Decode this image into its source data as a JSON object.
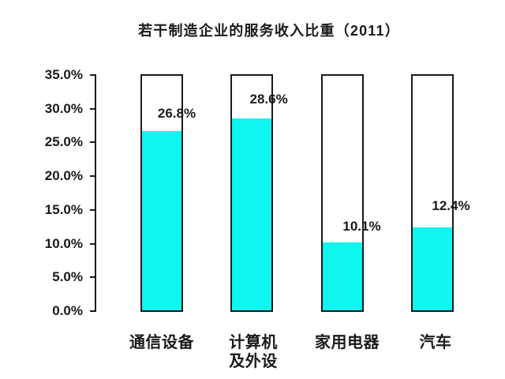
{
  "chart_data": {
    "type": "bar",
    "title": "若干制造企业的服务收入比重（2011）",
    "categories": [
      "通信设备",
      "计算机及外设",
      "家用电器",
      "汽车"
    ],
    "category_label_lines": [
      [
        "通信设备"
      ],
      [
        "计算机",
        "及外设"
      ],
      [
        "家用电器"
      ],
      [
        "汽车"
      ]
    ],
    "values": [
      26.8,
      28.6,
      10.1,
      12.4
    ],
    "value_labels": [
      "26.8%",
      "28.6%",
      "10.1%",
      "12.4%"
    ],
    "y_tick_labels": [
      "35.0%",
      "30.0%",
      "25.0%",
      "20.0%",
      "15.0%",
      "10.0%",
      "5.0%",
      "0.0%"
    ],
    "ylim": [
      0,
      35
    ],
    "y_tick_step": 5,
    "xlabel": "",
    "ylabel": "",
    "grid": false,
    "legend_position": "none",
    "bar_style": "full-height outline with fill up to value",
    "colors": {
      "bar_fill": "#0ff5ef",
      "outline": "#1a1a1a",
      "text": "#1a1a1a",
      "background": "#ffffff"
    }
  }
}
